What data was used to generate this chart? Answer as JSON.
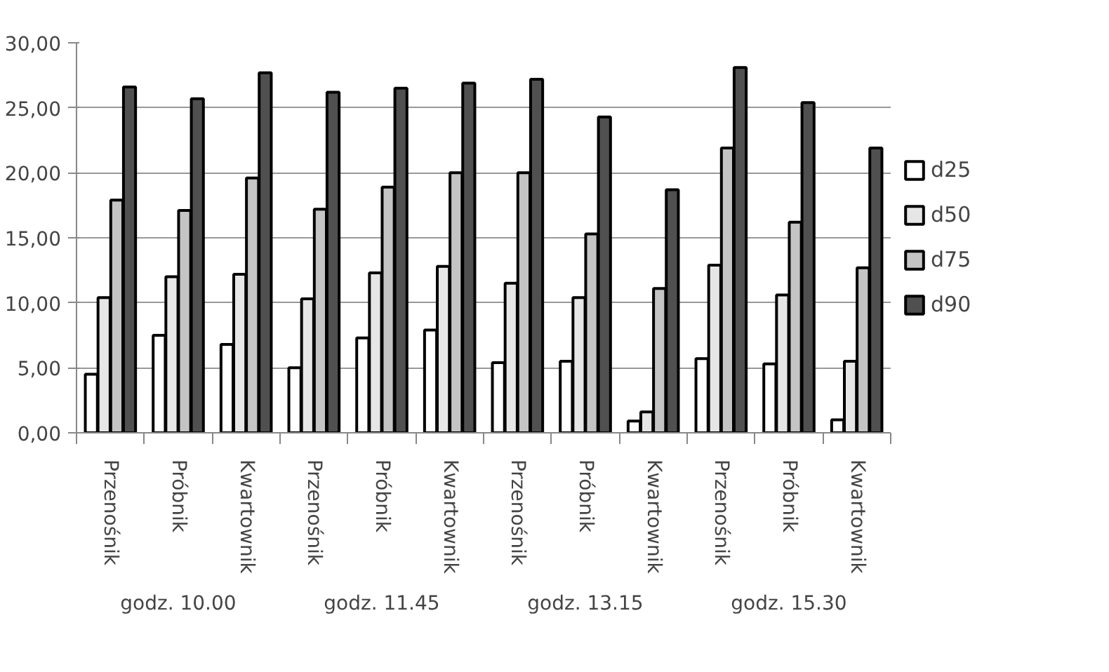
{
  "chart_data": {
    "type": "bar",
    "categories": [
      "Przenośnik",
      "Próbnik",
      "Kwartownik",
      "Przenośnik",
      "Próbnik",
      "Kwartownik",
      "Przenośnik",
      "Próbnik",
      "Kwartownik",
      "Przenośnik",
      "Próbnik",
      "Kwartownik"
    ],
    "annotations": [
      "godz. 10.00",
      "godz. 11.45",
      "godz. 13.15",
      "godz. 15.30"
    ],
    "series": [
      {
        "name": "d25",
        "color": "#ffffff",
        "values": [
          4.5,
          7.5,
          6.8,
          5.0,
          7.3,
          7.9,
          5.4,
          5.5,
          0.9,
          5.7,
          5.3,
          1.0
        ]
      },
      {
        "name": "d50",
        "color": "#e6e6e6",
        "values": [
          10.4,
          12.0,
          12.2,
          10.3,
          12.3,
          12.8,
          11.5,
          10.4,
          1.6,
          12.9,
          10.6,
          5.5
        ]
      },
      {
        "name": "d75",
        "color": "#c4c4c4",
        "values": [
          17.9,
          17.1,
          19.6,
          17.2,
          18.9,
          20.0,
          20.0,
          15.3,
          11.1,
          21.9,
          16.2,
          12.7
        ]
      },
      {
        "name": "d90",
        "color": "#505050",
        "values": [
          26.6,
          25.7,
          27.7,
          26.2,
          26.5,
          26.9,
          27.2,
          24.3,
          18.7,
          28.1,
          25.4,
          21.9
        ]
      }
    ],
    "ylim": [
      0,
      30
    ],
    "yticks": [
      {
        "value": 0,
        "label": "0,00"
      },
      {
        "value": 5,
        "label": "5,00"
      },
      {
        "value": 10,
        "label": "10,00"
      },
      {
        "value": 15,
        "label": "15,00"
      },
      {
        "value": 20,
        "label": "20,00"
      },
      {
        "value": 25,
        "label": "25,00"
      },
      {
        "value": 30,
        "label": "30,00"
      }
    ],
    "grid": "y",
    "legend": "right"
  }
}
